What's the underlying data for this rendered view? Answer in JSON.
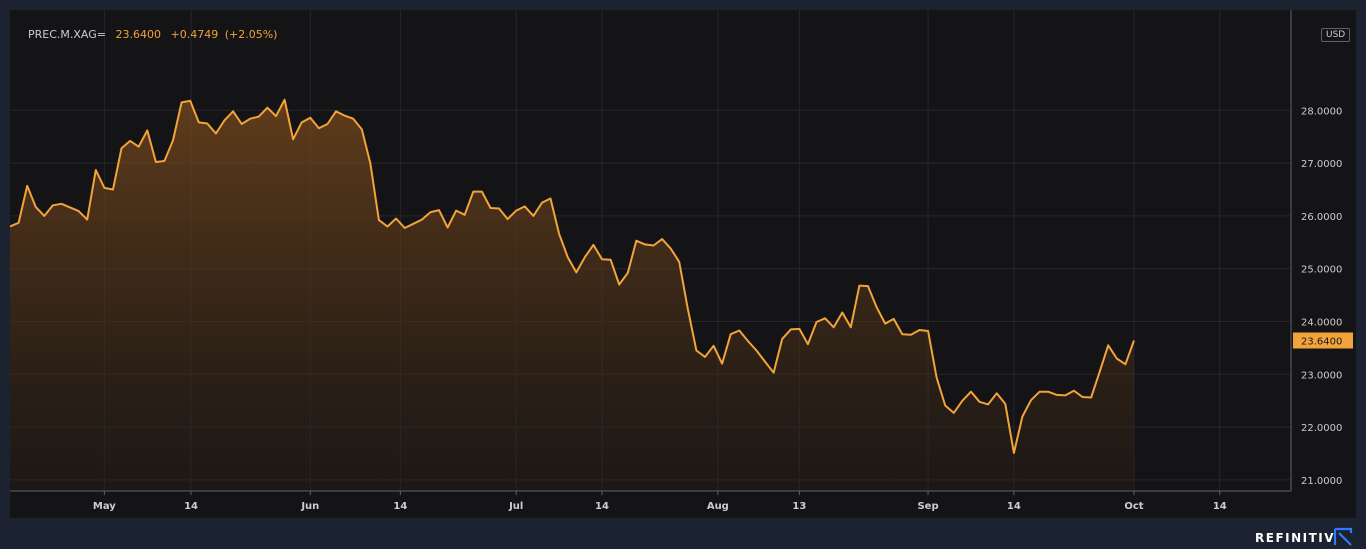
{
  "header": {
    "symbol": "PREC.M.XAG=",
    "last": "23.6400",
    "change": "+0.4749",
    "change_pct": "(+2.05%)"
  },
  "axis": {
    "currency": "USD"
  },
  "footer": {
    "brand": "REFINITIV"
  },
  "colors": {
    "line": "#f2a33a",
    "background": "#141416",
    "grid": "#26272b",
    "axis_text": "#c8cdd6",
    "last_tag": "#f2a33a"
  },
  "chart_data": {
    "type": "area",
    "title": "",
    "series": [
      {
        "values": [
          25.8,
          25.87,
          26.57,
          26.17,
          26.0,
          26.2,
          26.23,
          26.16,
          26.09,
          25.93,
          26.87,
          26.53,
          26.5,
          27.28,
          27.42,
          27.31,
          27.62,
          27.02,
          27.04,
          27.43,
          28.15,
          28.18,
          27.77,
          27.75,
          27.56,
          27.81,
          27.98,
          27.74,
          27.84,
          27.88,
          28.05,
          27.89,
          28.2,
          27.45,
          27.77,
          27.86,
          27.66,
          27.74,
          27.98,
          27.9,
          27.84,
          27.64,
          26.99,
          25.92,
          25.8,
          25.95,
          25.77,
          25.85,
          25.93,
          26.07,
          26.11,
          25.78,
          26.1,
          26.02,
          26.46,
          26.46,
          26.15,
          26.14,
          25.94,
          26.1,
          26.18,
          26.0,
          26.25,
          26.33,
          25.66,
          25.22,
          24.93,
          25.22,
          25.45,
          25.18,
          25.17,
          24.7,
          24.92,
          25.53,
          25.46,
          25.44,
          25.56,
          25.38,
          25.13,
          24.24,
          23.45,
          23.33,
          23.54,
          23.2,
          23.76,
          23.83,
          23.63,
          23.45,
          23.24,
          23.03,
          23.67,
          23.85,
          23.86,
          23.57,
          23.99,
          24.06,
          23.89,
          24.17,
          23.89,
          24.68,
          24.67,
          24.27,
          23.96,
          24.05,
          23.76,
          23.75,
          23.84,
          23.82,
          22.94,
          22.41,
          22.27,
          22.5,
          22.67,
          22.48,
          22.43,
          22.64,
          22.44,
          21.51,
          22.2,
          22.51,
          22.67,
          22.67,
          22.61,
          22.6,
          22.69,
          22.57,
          22.56,
          23.05,
          23.55,
          23.3,
          23.19,
          23.64
        ]
      }
    ],
    "x_tick_labels": [
      "May",
      "14",
      "Jun",
      "14",
      "Jul",
      "14",
      "Aug",
      "13",
      "Sep",
      "14",
      "Oct",
      "14"
    ],
    "x_tick_index": [
      11.0,
      21.1,
      35.0,
      45.5,
      59.0,
      69.0,
      82.5,
      92.0,
      107.0,
      117.0,
      131.0,
      141.0
    ],
    "y_ticks": [
      21,
      22,
      23,
      24,
      25,
      26,
      27,
      28
    ],
    "y_tick_labels": [
      "21.0000",
      "22.0000",
      "23.0000",
      "24.0000",
      "25.0000",
      "26.0000",
      "27.0000",
      "28.0000"
    ],
    "ylim": [
      20.79,
      29.71
    ],
    "last_value_label": "23.6400",
    "grid": true,
    "y_axis_side": "right"
  }
}
